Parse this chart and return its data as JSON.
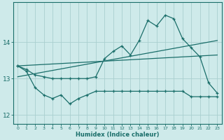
{
  "xlabel": "Humidex (Indice chaleur)",
  "ylabel": "",
  "background_color": "#ceeaea",
  "grid_color": "#aacfcf",
  "line_color": "#1a6e6a",
  "x_values": [
    0,
    1,
    2,
    3,
    4,
    5,
    6,
    7,
    8,
    9,
    10,
    11,
    12,
    13,
    14,
    15,
    16,
    17,
    18,
    19,
    20,
    21,
    22,
    23
  ],
  "y_main": [
    13.35,
    13.25,
    13.1,
    13.05,
    13.0,
    13.0,
    13.0,
    13.0,
    13.0,
    13.05,
    13.55,
    13.75,
    13.9,
    13.65,
    14.05,
    14.6,
    14.45,
    14.75,
    14.65,
    14.1,
    13.85,
    13.6,
    12.88,
    12.6
  ],
  "y_low": [
    13.35,
    13.2,
    12.75,
    12.55,
    12.45,
    12.55,
    12.3,
    12.45,
    12.55,
    12.65,
    12.65,
    12.65,
    12.65,
    12.65,
    12.65,
    12.65,
    12.65,
    12.65,
    12.65,
    12.65,
    12.5,
    12.5,
    12.5,
    12.5
  ],
  "trend1_x": [
    0,
    23
  ],
  "trend1_y": [
    13.05,
    14.05
  ],
  "trend2_x": [
    0,
    23
  ],
  "trend2_y": [
    13.35,
    13.65
  ],
  "ylim": [
    11.75,
    15.1
  ],
  "yticks": [
    12,
    13,
    14
  ],
  "xticks": [
    0,
    1,
    2,
    3,
    4,
    5,
    6,
    7,
    8,
    9,
    10,
    11,
    12,
    13,
    14,
    15,
    16,
    17,
    18,
    19,
    20,
    21,
    22,
    23
  ],
  "figsize": [
    3.2,
    2.0
  ],
  "dpi": 100
}
